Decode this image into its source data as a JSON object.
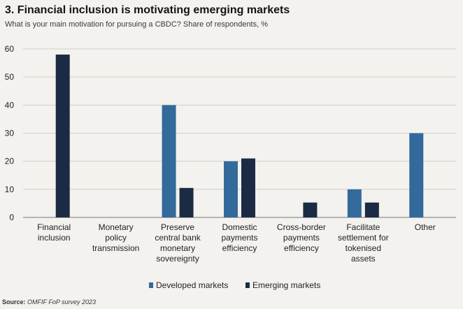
{
  "header": {
    "title": "3. Financial inclusion is motivating emerging markets",
    "subtitle": "What is your main motivation for pursuing a CBDC? Share of respondents, %"
  },
  "source": {
    "label": "Source:",
    "text": "OMFIF FoP survey 2023"
  },
  "colors": {
    "developed": "#336a9b",
    "emerging": "#1c2b44",
    "grid": "#cfcdc8",
    "axis": "#777777"
  },
  "chart_data": {
    "type": "bar",
    "categories": [
      [
        "Financial",
        "inclusion"
      ],
      [
        "Monetary",
        "policy",
        "transmission"
      ],
      [
        "Preserve",
        "central bank",
        "monetary",
        "sovereignty"
      ],
      [
        "Domestic",
        "payments",
        "efficiency"
      ],
      [
        "Cross-border",
        "payments",
        "efficiency"
      ],
      [
        "Facilitate",
        "settlement for",
        "tokenised",
        "assets"
      ],
      [
        "Other"
      ]
    ],
    "series": [
      {
        "name": "Developed markets",
        "values": [
          0,
          0,
          40,
          20,
          0,
          10,
          30
        ]
      },
      {
        "name": "Emerging markets",
        "values": [
          58,
          0,
          10.5,
          21,
          5.3,
          5.3,
          0
        ]
      }
    ],
    "ylim": [
      0,
      60
    ],
    "yticks": [
      0,
      10,
      20,
      30,
      40,
      50,
      60
    ],
    "grid": true,
    "legend": "bottom"
  }
}
